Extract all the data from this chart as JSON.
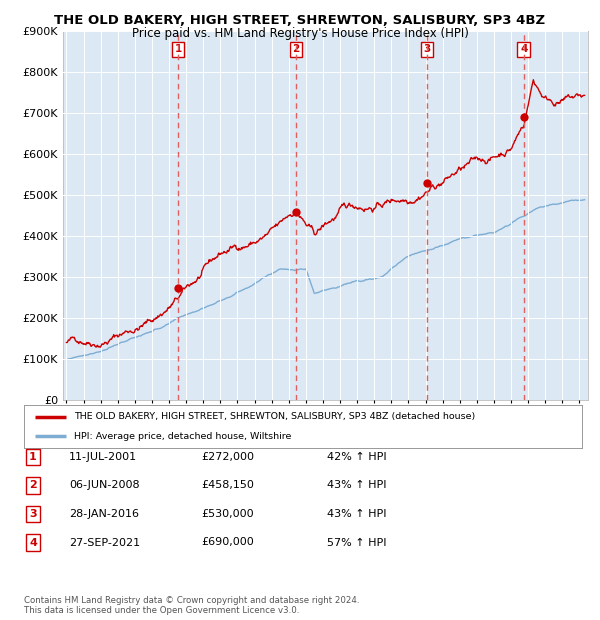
{
  "title": "THE OLD BAKERY, HIGH STREET, SHREWTON, SALISBURY, SP3 4BZ",
  "subtitle": "Price paid vs. HM Land Registry's House Price Index (HPI)",
  "bg_color": "#dce9f5",
  "red_line_color": "#cc0000",
  "blue_line_color": "#7eadd4",
  "dashed_line_color": "#e06060",
  "marker_color": "#cc0000",
  "ylim": [
    0,
    900000
  ],
  "yticks": [
    0,
    100000,
    200000,
    300000,
    400000,
    500000,
    600000,
    700000,
    800000,
    900000
  ],
  "ytick_labels": [
    "£0",
    "£100K",
    "£200K",
    "£300K",
    "£400K",
    "£500K",
    "£600K",
    "£700K",
    "£800K",
    "£900K"
  ],
  "xmin": 1994.8,
  "xmax": 2025.5,
  "xticks": [
    1995,
    1996,
    1997,
    1998,
    1999,
    2000,
    2001,
    2002,
    2003,
    2004,
    2005,
    2006,
    2007,
    2008,
    2009,
    2010,
    2011,
    2012,
    2013,
    2014,
    2015,
    2016,
    2017,
    2018,
    2019,
    2020,
    2021,
    2022,
    2023,
    2024,
    2025
  ],
  "purchases": [
    {
      "num": 1,
      "date": "11-JUL-2001",
      "year": 2001.53,
      "price": 272000,
      "pct": "42%",
      "dir": "↑"
    },
    {
      "num": 2,
      "date": "06-JUN-2008",
      "year": 2008.43,
      "price": 458150,
      "pct": "43%",
      "dir": "↑"
    },
    {
      "num": 3,
      "date": "28-JAN-2016",
      "year": 2016.07,
      "price": 530000,
      "pct": "43%",
      "dir": "↑"
    },
    {
      "num": 4,
      "date": "27-SEP-2021",
      "year": 2021.74,
      "price": 690000,
      "pct": "57%",
      "dir": "↑"
    }
  ],
  "legend_red_label": "THE OLD BAKERY, HIGH STREET, SHREWTON, SALISBURY, SP3 4BZ (detached house)",
  "legend_blue_label": "HPI: Average price, detached house, Wiltshire",
  "footnote": "Contains HM Land Registry data © Crown copyright and database right 2024.\nThis data is licensed under the Open Government Licence v3.0.",
  "table_rows": [
    [
      "1",
      "11-JUL-2001",
      "£272,000",
      "42% ↑ HPI"
    ],
    [
      "2",
      "06-JUN-2008",
      "£458,150",
      "43% ↑ HPI"
    ],
    [
      "3",
      "28-JAN-2016",
      "£530,000",
      "43% ↑ HPI"
    ],
    [
      "4",
      "27-SEP-2021",
      "£690,000",
      "57% ↑ HPI"
    ]
  ]
}
